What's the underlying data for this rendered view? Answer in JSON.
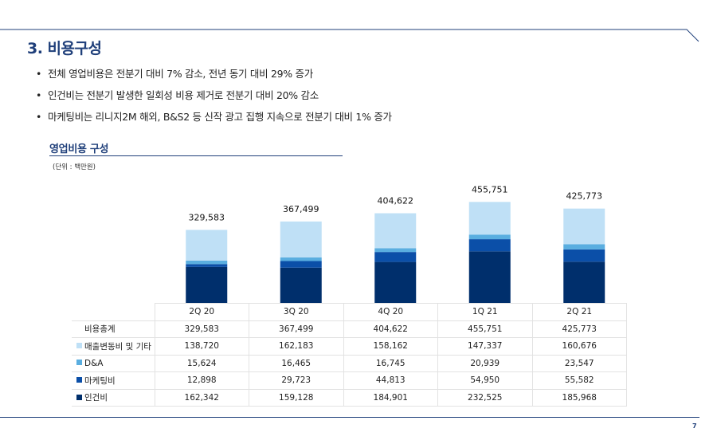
{
  "slide": {
    "title": "3. 비용구성",
    "bullets": [
      "전체 영업비용은 전분기 대비 7% 감소, 전년 동기 대비 29% 증가",
      "인건비는 전분기 발생한 일회성 비용 제거로 전분기 대비 20% 감소",
      "마케팅비는 리니지2M 해외, B&S2 등 신작 광고 집행 지속으로 전분기 대비 1% 증가"
    ],
    "section_title": "영업비용 구성",
    "unit": "(단위 : 백만원)",
    "page_number": "7",
    "accent_color": "#1f3f7a"
  },
  "chart_data": {
    "type": "bar",
    "stacked": true,
    "categories": [
      "2Q 20",
      "3Q 20",
      "4Q 20",
      "1Q 21",
      "2Q 21"
    ],
    "totals_label": "비용총계",
    "totals": [
      329583,
      367499,
      404622,
      455751,
      425773
    ],
    "totals_display": [
      "329,583",
      "367,499",
      "404,622",
      "455,751",
      "425,773"
    ],
    "series": [
      {
        "name": "인건비",
        "color": "#002f6c",
        "values": [
          162342,
          159128,
          184901,
          232525,
          185968
        ],
        "display": [
          "162,342",
          "159,128",
          "184,901",
          "232,525",
          "185,968"
        ]
      },
      {
        "name": "마케팅비",
        "color": "#0b4fa8",
        "values": [
          12898,
          29723,
          44813,
          54950,
          55582
        ],
        "display": [
          "12,898",
          "29,723",
          "44,813",
          "54,950",
          "55,582"
        ]
      },
      {
        "name": "D&A",
        "color": "#5aaee0",
        "values": [
          15624,
          16465,
          16745,
          20939,
          23547
        ],
        "display": [
          "15,624",
          "16,465",
          "16,745",
          "20,939",
          "23,547"
        ]
      },
      {
        "name": "매출변동비 및 기타",
        "color": "#bfe0f6",
        "values": [
          138720,
          162183,
          158162,
          147337,
          160676
        ],
        "display": [
          "138,720",
          "162,183",
          "158,162",
          "147,337",
          "160,676"
        ]
      }
    ],
    "ylim": [
      0,
      500000
    ],
    "grid": false,
    "legend": "table-left"
  }
}
